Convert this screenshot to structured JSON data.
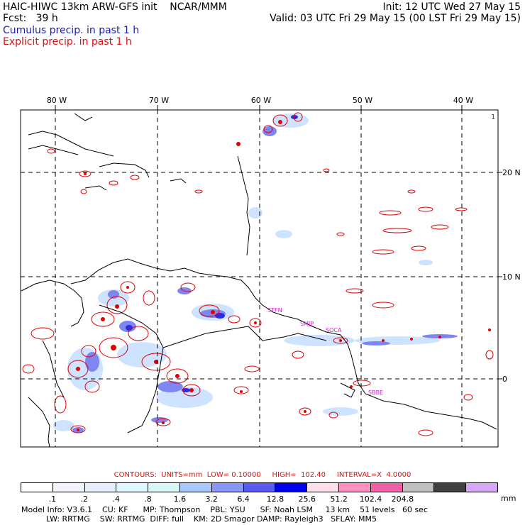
{
  "header": {
    "title_left": "HAIC-HIWC 13km ARW-GFS init    NCAR/MMM",
    "forecast": "Fcst:   39 h",
    "init": "Init: 12 UTC Wed 27 May 15",
    "valid": "Valid: 03 UTC Fri 29 May 15 (00 LST Fri 29 May 15)",
    "legend_cumulus": "Cumulus precip. in past 1 h",
    "legend_explicit": "Explicit precip. in past 1 h"
  },
  "map": {
    "lon_labels": [
      "80 W",
      "70 W",
      "60 W",
      "50 W",
      "40 W"
    ],
    "lat_labels": [
      "20 N",
      "10 N",
      "0"
    ],
    "corner_label": "1",
    "place_labels": [
      "STFN",
      "SMJP",
      "SOCA",
      "SBBE"
    ],
    "colors": {
      "coast": "#000000",
      "grid": "#000000",
      "explicit": "#e00000",
      "cumulus_light": "#c8e0ff",
      "cumulus_mid": "#7f86f0",
      "cumulus_dark": "#2a2ae8",
      "place_label": "#cc22cc"
    }
  },
  "contour_info": {
    "text": "CONTOURS:  UNITS=mm  LOW= 0.10000     HIGH=  102.40     INTERVAL=X  4.0000"
  },
  "colorbar": {
    "colors": [
      "#ffffff",
      "#f4f4ff",
      "#e8f0ff",
      "#e0f8ff",
      "#d8f8f8",
      "#a8c8ff",
      "#8898f8",
      "#5a5af0",
      "#0000f0",
      "#ffe0e8",
      "#ff90c0",
      "#f060a8",
      "#c0c0c0",
      "#404040",
      "#d8a8f8"
    ],
    "ticks": [
      ".1",
      ".2",
      ".4",
      ".8",
      "1.6",
      "3.2",
      "6.4",
      "12.8",
      "25.6",
      "51.2",
      "102.4",
      "204.8"
    ],
    "unit": "mm"
  },
  "model_info": {
    "line1": "Model Info: V3.6.1    CU: KF      MP: Thompson    PBL: YSU      SF: Noah LSM     13 km    51 levels   60 sec",
    "line2": "          LW: RRTMG    SW: RRTMG  DIFF: full    KM: 2D Smagor DAMP: Rayleigh3   SFLAY: MM5"
  }
}
